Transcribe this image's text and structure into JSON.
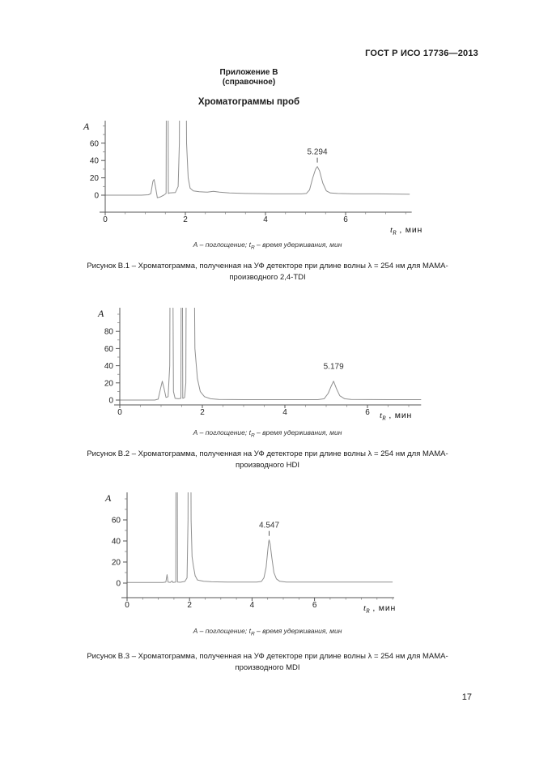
{
  "header": {
    "standard": "ГОСТ Р ИСО 17736—2013"
  },
  "annex": {
    "line1": "Приложение В",
    "line2": "(справочное)",
    "title": "Хроматограммы проб"
  },
  "figures": [
    {
      "note_pre": "А – поглощение; ",
      "note_t": "t",
      "note_sub": "R",
      "note_post": " – время удерживания, мин",
      "caption_line1": "Рисунок В.1 – Хроматограмма, полученная на УФ детекторе при длине волны λ = 254 нм для МАМА-",
      "caption_line2": "производного 2,4-TDI"
    },
    {
      "note_pre": "А – поглощение; ",
      "note_t": "t",
      "note_sub": "R",
      "note_post": " – время удерживания, мин",
      "caption_line1": "Рисунок В.2 – Хроматограмма, полученная на УФ детекторе при длине волны λ = 254 нм для МАМА-",
      "caption_line2": "производного HDI"
    },
    {
      "note_pre": "А – поглощение; ",
      "note_t": "t",
      "note_sub": "R",
      "note_post": " – время удерживания, мин",
      "caption_line1": "Рисунок В.3 – Хроматограмма, полученная на УФ детекторе при длине волны λ = 254 нм для МАМА-",
      "caption_line2": "производного MDI"
    }
  ],
  "page_number": "17",
  "colors": {
    "trace": "#8f8f8f",
    "axis": "#555555",
    "text": "#1a1a1a"
  },
  "chart_data": [
    {
      "id": "b1",
      "type": "line",
      "title": "Хроматограмма МАМА-производного 2,4-TDI, УФ детектор, λ = 254 нм",
      "ylabel": "A",
      "xlabel": {
        "t": "t",
        "sub": "R",
        "rest": " , мин"
      },
      "xlim": [
        0,
        7.65
      ],
      "ylim": [
        0,
        85
      ],
      "x_ticks": [
        0,
        2,
        4,
        6
      ],
      "x_minor_step": 0.5,
      "y_ticks": [
        0,
        20,
        40,
        60
      ],
      "y_minor_step": 10,
      "peak": {
        "label": "5.294",
        "x": 5.294,
        "y": 33,
        "tick": true
      },
      "trace": [
        [
          0,
          0
        ],
        [
          0.9,
          0
        ],
        [
          1.08,
          0.5
        ],
        [
          1.14,
          2
        ],
        [
          1.19,
          16
        ],
        [
          1.22,
          18
        ],
        [
          1.26,
          8
        ],
        [
          1.3,
          -3
        ],
        [
          1.38,
          -2
        ],
        [
          1.46,
          0
        ],
        [
          1.52,
          2
        ],
        [
          1.535,
          300
        ],
        [
          1.56,
          300
        ],
        [
          1.575,
          2
        ],
        [
          1.6,
          2.5
        ],
        [
          1.75,
          3
        ],
        [
          1.82,
          10
        ],
        [
          1.85,
          60
        ],
        [
          1.87,
          300
        ],
        [
          2.0,
          300
        ],
        [
          2.03,
          60
        ],
        [
          2.07,
          20
        ],
        [
          2.12,
          8
        ],
        [
          2.2,
          5
        ],
        [
          2.35,
          4
        ],
        [
          2.55,
          3.5
        ],
        [
          2.7,
          4.5
        ],
        [
          2.85,
          3.5
        ],
        [
          3.1,
          2.5
        ],
        [
          3.5,
          2
        ],
        [
          4.2,
          1.5
        ],
        [
          4.9,
          1.5
        ],
        [
          5.02,
          2
        ],
        [
          5.1,
          6
        ],
        [
          5.18,
          20
        ],
        [
          5.25,
          30
        ],
        [
          5.294,
          33
        ],
        [
          5.35,
          28
        ],
        [
          5.43,
          14
        ],
        [
          5.52,
          5
        ],
        [
          5.62,
          2.5
        ],
        [
          5.8,
          2
        ],
        [
          6.2,
          1.5
        ],
        [
          6.8,
          1.5
        ],
        [
          7.6,
          1
        ]
      ]
    },
    {
      "id": "b2",
      "type": "line",
      "title": "Хроматограмма МАМА-производного HDI, УФ детектор, λ = 254 нм",
      "ylabel": "A",
      "xlabel": {
        "t": "t",
        "sub": "R",
        "rest": " , мин"
      },
      "xlim": [
        0,
        7.3
      ],
      "ylim": [
        0,
        107
      ],
      "x_ticks": [
        0,
        2,
        4,
        6
      ],
      "x_minor_step": 0.5,
      "y_ticks": [
        0,
        20,
        40,
        60,
        80
      ],
      "y_minor_step": 10,
      "peak": {
        "label": "5.179",
        "x": 5.179,
        "y": 22,
        "tick": false
      },
      "trace": [
        [
          0,
          0
        ],
        [
          0.85,
          0
        ],
        [
          0.93,
          1
        ],
        [
          0.99,
          14
        ],
        [
          1.03,
          22
        ],
        [
          1.07,
          14
        ],
        [
          1.12,
          3
        ],
        [
          1.17,
          4
        ],
        [
          1.21,
          40
        ],
        [
          1.23,
          300
        ],
        [
          1.27,
          300
        ],
        [
          1.3,
          10
        ],
        [
          1.34,
          2
        ],
        [
          1.42,
          1.5
        ],
        [
          1.48,
          2
        ],
        [
          1.495,
          300
        ],
        [
          1.51,
          300
        ],
        [
          1.525,
          2
        ],
        [
          1.57,
          3
        ],
        [
          1.6,
          20
        ],
        [
          1.62,
          300
        ],
        [
          1.78,
          300
        ],
        [
          1.82,
          60
        ],
        [
          1.88,
          25
        ],
        [
          1.95,
          10
        ],
        [
          2.05,
          4
        ],
        [
          2.2,
          1.5
        ],
        [
          2.4,
          0.8
        ],
        [
          3.0,
          0.5
        ],
        [
          4.0,
          0.5
        ],
        [
          4.8,
          0.5
        ],
        [
          4.95,
          1.5
        ],
        [
          5.05,
          8
        ],
        [
          5.12,
          16
        ],
        [
          5.179,
          22
        ],
        [
          5.25,
          13
        ],
        [
          5.33,
          5
        ],
        [
          5.45,
          1.5
        ],
        [
          5.6,
          0.8
        ],
        [
          6.5,
          0.5
        ],
        [
          7.3,
          0.5
        ]
      ]
    },
    {
      "id": "b3",
      "type": "line",
      "title": "Хроматограмма МАМА-производного MDI, УФ детектор, λ = 254 нм",
      "ylabel": "A",
      "xlabel": {
        "t": "t",
        "sub": "R",
        "rest": " , мин"
      },
      "xlim": [
        0,
        8.55
      ],
      "ylim": [
        0,
        86
      ],
      "x_ticks": [
        0,
        2,
        4,
        6
      ],
      "x_minor_step": 0.5,
      "y_ticks": [
        0,
        20,
        40,
        60
      ],
      "y_minor_step": 10,
      "peak": {
        "label": "4.547",
        "x": 4.547,
        "y": 41,
        "tick": true
      },
      "trace": [
        [
          0,
          0.5
        ],
        [
          1.15,
          0.5
        ],
        [
          1.24,
          1
        ],
        [
          1.28,
          8
        ],
        [
          1.31,
          1
        ],
        [
          1.38,
          0.5
        ],
        [
          1.44,
          2
        ],
        [
          1.47,
          0.5
        ],
        [
          1.56,
          1
        ],
        [
          1.575,
          300
        ],
        [
          1.6,
          300
        ],
        [
          1.615,
          1
        ],
        [
          1.7,
          0.8
        ],
        [
          1.85,
          1.5
        ],
        [
          1.92,
          5
        ],
        [
          1.95,
          60
        ],
        [
          1.97,
          300
        ],
        [
          2.02,
          300
        ],
        [
          2.05,
          60
        ],
        [
          2.08,
          25
        ],
        [
          2.12,
          17
        ],
        [
          2.18,
          7
        ],
        [
          2.25,
          3
        ],
        [
          2.32,
          2.5
        ],
        [
          2.45,
          1.8
        ],
        [
          2.7,
          1.2
        ],
        [
          3.2,
          1
        ],
        [
          4.15,
          1
        ],
        [
          4.3,
          1.5
        ],
        [
          4.38,
          5
        ],
        [
          4.45,
          15
        ],
        [
          4.5,
          30
        ],
        [
          4.53,
          39
        ],
        [
          4.547,
          41
        ],
        [
          4.58,
          37
        ],
        [
          4.63,
          25
        ],
        [
          4.7,
          10
        ],
        [
          4.78,
          4
        ],
        [
          4.88,
          1.8
        ],
        [
          5.1,
          1
        ],
        [
          6.0,
          1
        ],
        [
          7.0,
          1
        ],
        [
          8.5,
          1
        ]
      ]
    }
  ]
}
